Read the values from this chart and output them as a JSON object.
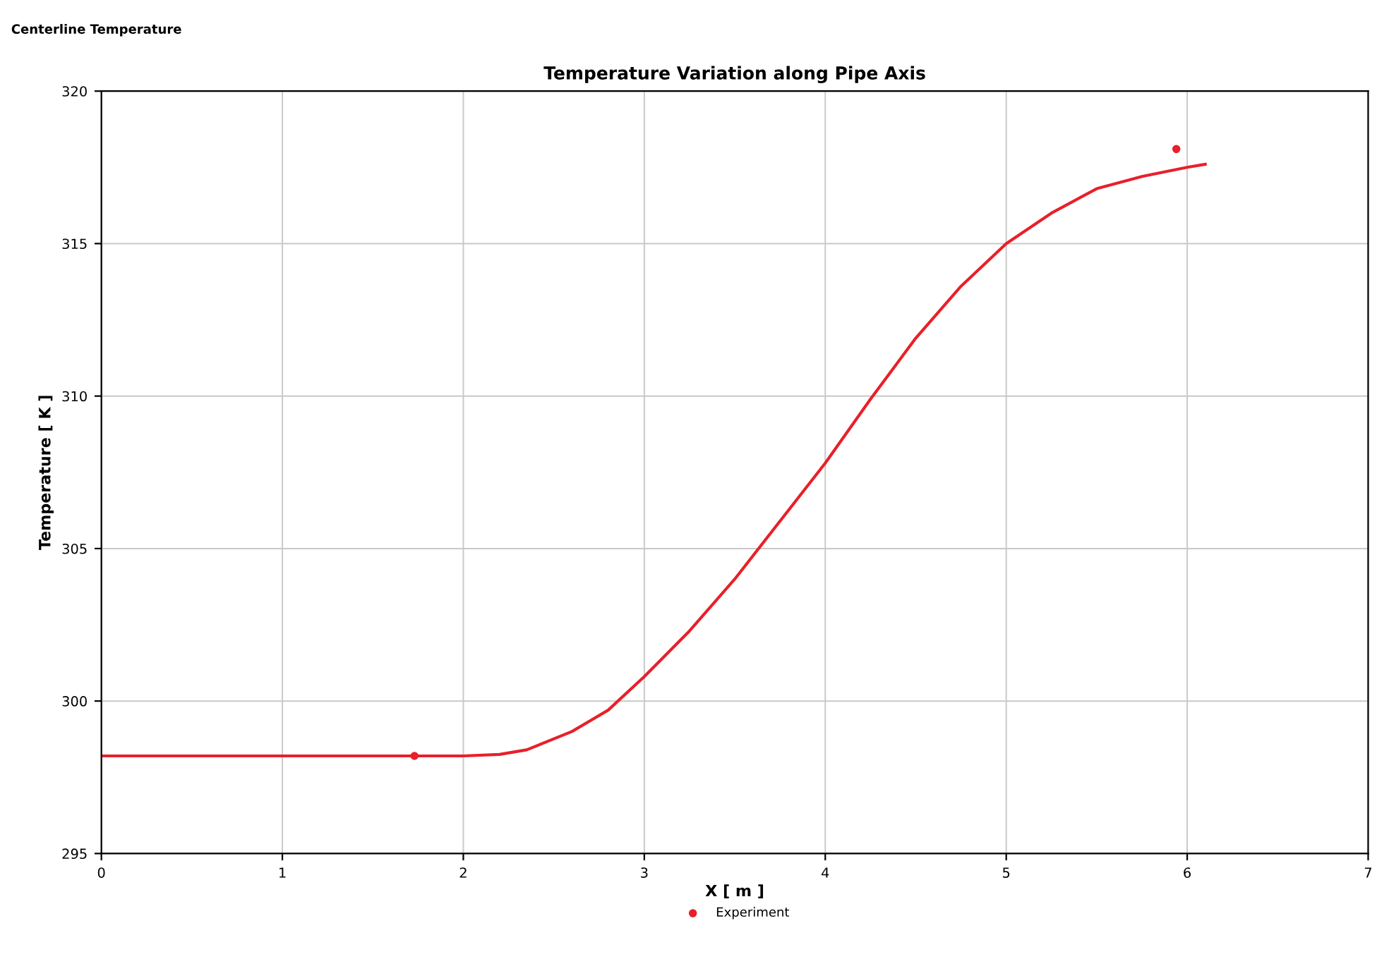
{
  "chart_data": {
    "type": "line",
    "title": "Temperature Variation along Pipe Axis",
    "annotations": [
      "Centerline Temperature"
    ],
    "xlabel": "X [ m ]",
    "ylabel": "Temperature [ K ]",
    "xlim": [
      0,
      7
    ],
    "xticks": [
      0,
      1,
      2,
      3,
      4,
      5,
      6,
      7
    ],
    "ylim": [
      295,
      320
    ],
    "yticks": [
      295,
      300,
      305,
      310,
      315,
      320
    ],
    "grid": true,
    "legend": "bottom",
    "series": [
      {
        "color": "#e8202a",
        "marker": "none",
        "x": [
          0,
          1,
          2.0,
          2.2,
          2.35,
          2.6,
          2.8,
          3.0,
          3.25,
          3.5,
          3.75,
          4.0,
          4.25,
          4.5,
          4.75,
          5.0,
          5.25,
          5.5,
          5.75,
          6.0,
          6.1
        ],
        "values": [
          298.2,
          298.2,
          298.2,
          298.25,
          298.4,
          299.0,
          299.7,
          300.8,
          302.3,
          304.0,
          305.9,
          307.8,
          309.9,
          311.9,
          313.6,
          315.0,
          316.0,
          316.8,
          317.2,
          317.5,
          317.6
        ]
      },
      {
        "type": "scatter",
        "name": "Experiment",
        "color": "#e8202a",
        "marker": "circle",
        "x": [
          1.73,
          5.94
        ],
        "values": [
          298.2,
          318.1
        ]
      }
    ]
  }
}
